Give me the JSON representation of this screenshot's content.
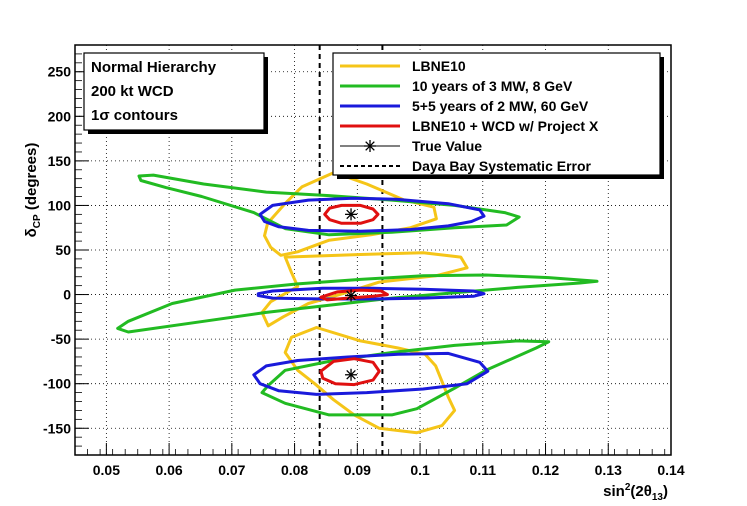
{
  "chart_data": {
    "type": "line",
    "subtype": "contour",
    "xlabel_base": "sin",
    "xlabel_sup": "2",
    "xlabel_mid": "(2θ",
    "xlabel_sub": "13",
    "xlabel_end": ")",
    "ylabel_base": "δ",
    "ylabel_sub": "CP",
    "ylabel_end": " (degrees)",
    "xlim": [
      0.045,
      0.14
    ],
    "ylim": [
      -180,
      280
    ],
    "xticks": [
      0.05,
      0.06,
      0.07,
      0.08,
      0.09,
      0.1,
      0.11,
      0.12,
      0.13,
      0.14
    ],
    "xtick_labels": [
      "0.05",
      "0.06",
      "0.07",
      "0.08",
      "0.09",
      "0.1",
      "0.11",
      "0.12",
      "0.13",
      "0.14"
    ],
    "yticks": [
      -150,
      -100,
      -50,
      0,
      50,
      100,
      150,
      200,
      250
    ],
    "ytick_labels": [
      "-150",
      "-100",
      "-50",
      "0",
      "50",
      "100",
      "150",
      "200",
      "250"
    ],
    "grid": true,
    "info_box": [
      "Normal Hierarchy",
      "200 kt WCD",
      "1σ contours"
    ],
    "legend_position": "top-right",
    "legend": [
      {
        "label": "LBNE10",
        "color": "#f5c518",
        "kind": "line"
      },
      {
        "label": "10 years of 3 MW, 8 GeV",
        "color": "#22bb22",
        "kind": "line"
      },
      {
        "label": "5+5 years of 2 MW, 60 GeV",
        "color": "#1a1adb",
        "kind": "line"
      },
      {
        "label": "LBNE10 + WCD w/ Project X",
        "color": "#e01010",
        "kind": "line"
      },
      {
        "label": "True Value",
        "color": "#000000",
        "kind": "marker"
      },
      {
        "label": "Daya Bay Systematic Error",
        "color": "#000000",
        "kind": "dashed"
      }
    ],
    "daya_bay_band": [
      0.084,
      0.094
    ],
    "true_values": [
      {
        "x": 0.089,
        "y": 90
      },
      {
        "x": 0.089,
        "y": -1
      },
      {
        "x": 0.089,
        "y": -90
      }
    ],
    "series": [
      {
        "name": "LBNE10",
        "color": "#f5c518",
        "points": [
          [
            0.0863,
            137
          ],
          [
            0.0915,
            124
          ],
          [
            0.0975,
            106
          ],
          [
            0.1022,
            98
          ],
          [
            0.1026,
            85
          ],
          [
            0.0985,
            75
          ],
          [
            0.0922,
            67
          ],
          [
            0.0855,
            61
          ],
          [
            0.0805,
            48
          ],
          [
            0.0778,
            44
          ],
          [
            0.0762,
            53
          ],
          [
            0.0752,
            66
          ],
          [
            0.0757,
            80
          ],
          [
            0.0786,
            103
          ],
          [
            0.0812,
            121
          ],
          [
            0.0863,
            137
          ]
        ]
      },
      {
        "name": "LBNE10",
        "color": "#f5c518",
        "points": [
          [
            0.0785,
            42
          ],
          [
            0.0905,
            45
          ],
          [
            0.1005,
            47
          ],
          [
            0.1065,
            42
          ],
          [
            0.1075,
            30
          ],
          [
            0.1025,
            21
          ],
          [
            0.0935,
            14
          ],
          [
            0.0872,
            0
          ],
          [
            0.0822,
            -10
          ],
          [
            0.0782,
            -25
          ],
          [
            0.0758,
            -35
          ],
          [
            0.0748,
            -20
          ],
          [
            0.0762,
            -8
          ],
          [
            0.0805,
            9
          ],
          [
            0.0795,
            25
          ],
          [
            0.0785,
            42
          ]
        ]
      },
      {
        "name": "LBNE10",
        "color": "#f5c518",
        "points": [
          [
            0.0835,
            -37
          ],
          [
            0.0905,
            -52
          ],
          [
            0.0965,
            -60
          ],
          [
            0.1008,
            -67
          ],
          [
            0.1025,
            -80
          ],
          [
            0.1045,
            -115
          ],
          [
            0.1055,
            -130
          ],
          [
            0.1035,
            -147
          ],
          [
            0.0995,
            -155
          ],
          [
            0.0935,
            -150
          ],
          [
            0.0895,
            -135
          ],
          [
            0.0862,
            -118
          ],
          [
            0.0832,
            -100
          ],
          [
            0.0805,
            -85
          ],
          [
            0.0785,
            -65
          ],
          [
            0.0795,
            -48
          ],
          [
            0.0835,
            -37
          ]
        ]
      },
      {
        "name": "10 years of 3 MW, 8 GeV",
        "color": "#22bb22",
        "points": [
          [
            0.0552,
            133
          ],
          [
            0.0575,
            134
          ],
          [
            0.0655,
            124
          ],
          [
            0.0755,
            115
          ],
          [
            0.0855,
            111
          ],
          [
            0.0955,
            106
          ],
          [
            0.1055,
            100
          ],
          [
            0.1135,
            92
          ],
          [
            0.1158,
            87
          ],
          [
            0.1138,
            78
          ],
          [
            0.1055,
            75
          ],
          [
            0.0955,
            70
          ],
          [
            0.0855,
            67
          ],
          [
            0.0785,
            74
          ],
          [
            0.0735,
            92
          ],
          [
            0.0652,
            110
          ],
          [
            0.0595,
            120
          ],
          [
            0.0555,
            128
          ],
          [
            0.0552,
            133
          ]
        ]
      },
      {
        "name": "10 years of 3 MW, 8 GeV",
        "color": "#22bb22",
        "points": [
          [
            0.0518,
            -38
          ],
          [
            0.0535,
            -42
          ],
          [
            0.0655,
            -30
          ],
          [
            0.0755,
            -20
          ],
          [
            0.0855,
            -12
          ],
          [
            0.0955,
            -4
          ],
          [
            0.1055,
            2
          ],
          [
            0.1155,
            8
          ],
          [
            0.1255,
            13
          ],
          [
            0.1282,
            15
          ],
          [
            0.1205,
            19
          ],
          [
            0.1105,
            22
          ],
          [
            0.1005,
            21
          ],
          [
            0.0905,
            17
          ],
          [
            0.0805,
            12
          ],
          [
            0.0705,
            5
          ],
          [
            0.0605,
            -10
          ],
          [
            0.0535,
            -30
          ],
          [
            0.0518,
            -38
          ]
        ]
      },
      {
        "name": "10 years of 3 MW, 8 GeV",
        "color": "#22bb22",
        "points": [
          [
            0.0758,
            -102
          ],
          [
            0.0785,
            -85
          ],
          [
            0.0855,
            -75
          ],
          [
            0.0955,
            -65
          ],
          [
            0.1055,
            -57
          ],
          [
            0.1155,
            -52
          ],
          [
            0.1205,
            -53
          ],
          [
            0.1185,
            -60
          ],
          [
            0.1105,
            -85
          ],
          [
            0.1055,
            -105
          ],
          [
            0.0995,
            -128
          ],
          [
            0.0955,
            -135
          ],
          [
            0.0855,
            -135
          ],
          [
            0.0785,
            -122
          ],
          [
            0.0748,
            -110
          ],
          [
            0.0758,
            -102
          ]
        ]
      },
      {
        "name": "5+5 years of 2 MW, 60 GeV",
        "color": "#1a1adb",
        "points": [
          [
            0.0745,
            90
          ],
          [
            0.0765,
            100
          ],
          [
            0.0822,
            106
          ],
          [
            0.0892,
            108
          ],
          [
            0.0962,
            107
          ],
          [
            0.1045,
            102
          ],
          [
            0.1095,
            95
          ],
          [
            0.1102,
            88
          ],
          [
            0.1082,
            82
          ],
          [
            0.1045,
            77
          ],
          [
            0.0985,
            73
          ],
          [
            0.0905,
            71
          ],
          [
            0.0822,
            72
          ],
          [
            0.0775,
            76
          ],
          [
            0.0752,
            82
          ],
          [
            0.0745,
            90
          ]
        ]
      },
      {
        "name": "5+5 years of 2 MW, 60 GeV",
        "color": "#1a1adb",
        "points": [
          [
            0.0742,
            1
          ],
          [
            0.0765,
            4
          ],
          [
            0.0845,
            7
          ],
          [
            0.0925,
            7
          ],
          [
            0.1005,
            6
          ],
          [
            0.1085,
            4
          ],
          [
            0.1102,
            1
          ],
          [
            0.1085,
            -2
          ],
          [
            0.1005,
            -4
          ],
          [
            0.0925,
            -5
          ],
          [
            0.0845,
            -5
          ],
          [
            0.0765,
            -4
          ],
          [
            0.0742,
            -1
          ],
          [
            0.0742,
            1
          ]
        ]
      },
      {
        "name": "5+5 years of 2 MW, 60 GeV",
        "color": "#1a1adb",
        "points": [
          [
            0.0735,
            -90
          ],
          [
            0.0755,
            -80
          ],
          [
            0.0805,
            -74
          ],
          [
            0.0885,
            -70
          ],
          [
            0.0965,
            -67
          ],
          [
            0.1045,
            -66
          ],
          [
            0.1095,
            -76
          ],
          [
            0.1108,
            -86
          ],
          [
            0.1075,
            -100
          ],
          [
            0.1005,
            -106
          ],
          [
            0.0915,
            -110
          ],
          [
            0.0835,
            -112
          ],
          [
            0.0775,
            -108
          ],
          [
            0.0745,
            -100
          ],
          [
            0.0735,
            -90
          ]
        ]
      },
      {
        "name": "LBNE10 + WCD w/ Project X",
        "color": "#e01010",
        "points": [
          [
            0.0848,
            90
          ],
          [
            0.0856,
            97
          ],
          [
            0.0875,
            100
          ],
          [
            0.0905,
            100
          ],
          [
            0.0925,
            96
          ],
          [
            0.0933,
            90
          ],
          [
            0.0925,
            84
          ],
          [
            0.0905,
            80
          ],
          [
            0.0875,
            80
          ],
          [
            0.0856,
            84
          ],
          [
            0.0848,
            90
          ]
        ]
      },
      {
        "name": "LBNE10 + WCD w/ Project X",
        "color": "#e01010",
        "points": [
          [
            0.0842,
            -3
          ],
          [
            0.0868,
            3
          ],
          [
            0.0905,
            5
          ],
          [
            0.0938,
            4
          ],
          [
            0.0948,
            0
          ],
          [
            0.0925,
            -2
          ],
          [
            0.0885,
            -4
          ],
          [
            0.0852,
            -6
          ],
          [
            0.0842,
            -3
          ]
        ]
      },
      {
        "name": "LBNE10 + WCD w/ Project X",
        "color": "#e01010",
        "points": [
          [
            0.0842,
            -86
          ],
          [
            0.0862,
            -75
          ],
          [
            0.0895,
            -72
          ],
          [
            0.0925,
            -76
          ],
          [
            0.0935,
            -86
          ],
          [
            0.0925,
            -96
          ],
          [
            0.0895,
            -101
          ],
          [
            0.0865,
            -100
          ],
          [
            0.0845,
            -94
          ],
          [
            0.0842,
            -86
          ]
        ]
      }
    ]
  }
}
